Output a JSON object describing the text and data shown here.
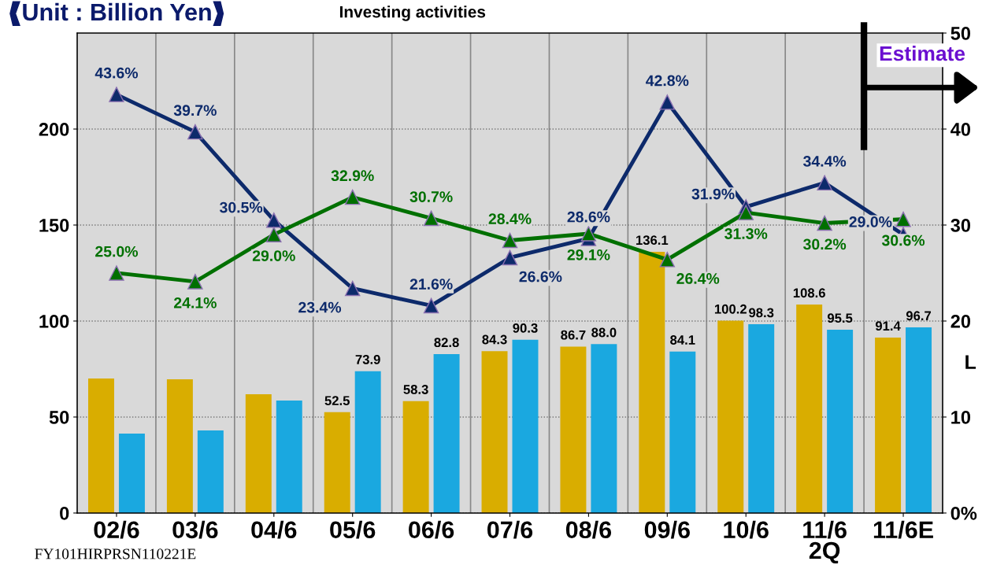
{
  "chart_data": {
    "type": "bar",
    "annotations": [
      "Unit : Billion Yen",
      "Investing activities",
      "Estimate",
      "L",
      "FY101HIRPRSN110221E"
    ],
    "categories": [
      "02/6",
      "03/6",
      "04/6",
      "05/6",
      "06/6",
      "07/6",
      "08/6",
      "09/6",
      "10/6",
      "11/6\n2Q",
      "11/6E"
    ],
    "series": [
      {
        "type": "bar",
        "color": "#d9ad00",
        "values": [
          70.1,
          69.7,
          61.9,
          52.5,
          58.3,
          84.3,
          86.7,
          136.1,
          100.2,
          108.6,
          91.4
        ],
        "value_labels": [
          null,
          null,
          null,
          "52.5",
          "58.3",
          "84.3",
          "86.7",
          "136.1",
          "100.2",
          "108.6",
          "91.4"
        ]
      },
      {
        "type": "bar",
        "color": "#1aa8e0",
        "values": [
          41.4,
          43.0,
          58.6,
          73.9,
          82.8,
          90.3,
          88.0,
          84.1,
          98.3,
          95.5,
          96.7
        ],
        "value_labels": [
          null,
          null,
          null,
          "73.9",
          "82.8",
          "90.3",
          "88.0",
          "84.1",
          "98.3",
          "95.5",
          "96.7"
        ]
      },
      {
        "type": "line",
        "axis": "y2",
        "color": "#0d2a6b",
        "marker": "triangle",
        "values": [
          43.6,
          39.7,
          30.5,
          23.4,
          21.6,
          26.6,
          28.6,
          42.8,
          31.9,
          34.4,
          29.0
        ],
        "value_labels": [
          "43.6%",
          "39.7%",
          "30.5%",
          "23.4%",
          "21.6%",
          "26.6%",
          "28.6%",
          "42.8%",
          "31.9%",
          "34.4%",
          "29.0%"
        ]
      },
      {
        "type": "line",
        "axis": "y2",
        "color": "#007000",
        "marker": "triangle",
        "values": [
          25.0,
          24.1,
          29.0,
          32.9,
          30.7,
          28.4,
          29.1,
          26.4,
          31.3,
          30.2,
          30.6
        ],
        "value_labels": [
          "25.0%",
          "24.1%",
          "29.0%",
          "32.9%",
          "30.7%",
          "28.4%",
          "29.1%",
          "26.4%",
          "31.3%",
          "30.2%",
          "30.6%"
        ]
      }
    ],
    "ylim": [
      0,
      250
    ],
    "yticks": [
      0,
      50,
      100,
      150,
      200
    ],
    "y2lim": [
      0,
      50
    ],
    "y2ticks": [
      {
        "value": 0,
        "label": "0%"
      },
      10,
      20,
      30,
      40,
      50
    ],
    "grid": true,
    "legend": false
  }
}
